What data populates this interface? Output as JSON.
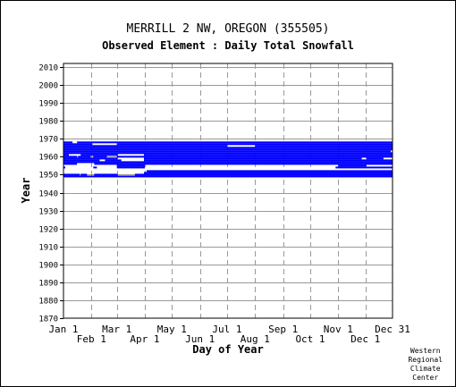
{
  "title": "MERRILL 2 NW, OREGON   (355505)",
  "subtitle": "Observed Element : Daily Total Snowfall",
  "credit_lines": [
    "Western",
    "Regional",
    "Climate",
    "Center"
  ],
  "chart_data": {
    "type": "timeline",
    "xlabel": "Day of Year",
    "ylabel": "Year",
    "xlim": [
      1,
      365
    ],
    "ylim": [
      1870,
      2012
    ],
    "y_ticks": [
      1870,
      1880,
      1890,
      1900,
      1910,
      1920,
      1930,
      1940,
      1950,
      1960,
      1970,
      1980,
      1990,
      2000,
      2010
    ],
    "x_ticks_top_row": [
      {
        "label": "Jan 1",
        "day": 1
      },
      {
        "label": "Mar 1",
        "day": 60
      },
      {
        "label": "May 1",
        "day": 121
      },
      {
        "label": "Jul 1",
        "day": 182
      },
      {
        "label": "Sep 1",
        "day": 244
      },
      {
        "label": "Nov 1",
        "day": 305
      },
      {
        "label": "Dec 31",
        "day": 365
      }
    ],
    "x_ticks_bottom_row": [
      {
        "label": "Feb 1",
        "day": 32
      },
      {
        "label": "Apr 1",
        "day": 91
      },
      {
        "label": "Jun 1",
        "day": 152
      },
      {
        "label": "Aug 1",
        "day": 213
      },
      {
        "label": "Oct 1",
        "day": 274
      },
      {
        "label": "Dec 1",
        "day": 335
      }
    ],
    "grid": true,
    "bar_color": "#0000ff",
    "note": "Blue segments mark days with observed data; each segment is [year, start_day, end_day].",
    "segments": [
      [
        1949,
        1,
        365
      ],
      [
        1950,
        1,
        18
      ],
      [
        1950,
        20,
        26
      ],
      [
        1950,
        35,
        60
      ],
      [
        1950,
        80,
        365
      ],
      [
        1951,
        90,
        365
      ],
      [
        1952,
        93,
        365
      ],
      [
        1954,
        1,
        2
      ],
      [
        1954,
        34,
        37
      ],
      [
        1954,
        60,
        90
      ],
      [
        1954,
        302,
        365
      ],
      [
        1955,
        60,
        90
      ],
      [
        1955,
        305,
        335
      ],
      [
        1956,
        1,
        15
      ],
      [
        1956,
        35,
        60
      ],
      [
        1956,
        60,
        365
      ],
      [
        1957,
        1,
        60
      ],
      [
        1957,
        60,
        90
      ],
      [
        1957,
        90,
        365
      ],
      [
        1958,
        1,
        40
      ],
      [
        1958,
        47,
        64
      ],
      [
        1958,
        90,
        365
      ],
      [
        1959,
        1,
        60
      ],
      [
        1959,
        90,
        330
      ],
      [
        1959,
        336,
        354
      ],
      [
        1960,
        1,
        15
      ],
      [
        1960,
        17,
        30
      ],
      [
        1960,
        34,
        48
      ],
      [
        1960,
        60,
        365
      ],
      [
        1961,
        1,
        6
      ],
      [
        1961,
        20,
        60
      ],
      [
        1961,
        90,
        365
      ],
      [
        1962,
        1,
        365
      ],
      [
        1963,
        1,
        362
      ],
      [
        1964,
        1,
        365
      ],
      [
        1965,
        1,
        365
      ],
      [
        1966,
        1,
        181
      ],
      [
        1966,
        213,
        305
      ],
      [
        1966,
        305,
        365
      ],
      [
        1967,
        1,
        32
      ],
      [
        1967,
        60,
        365
      ],
      [
        1968,
        1,
        10
      ],
      [
        1968,
        16,
        365
      ]
    ]
  }
}
